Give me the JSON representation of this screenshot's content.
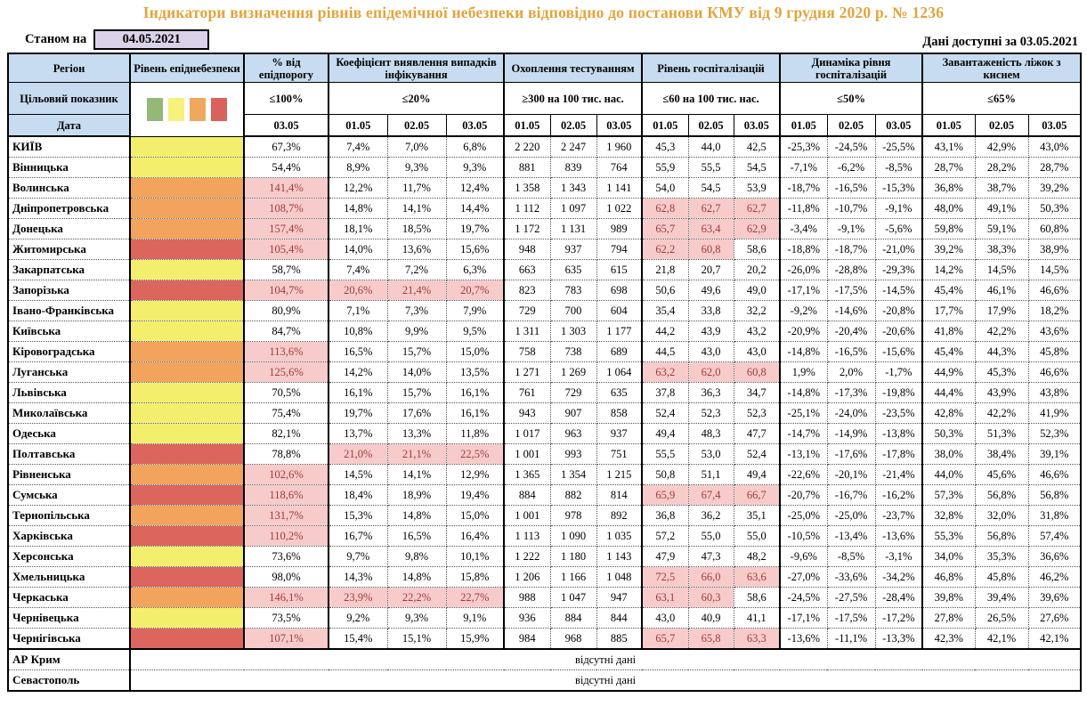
{
  "title": "Індикатори визначення рівнів епідемічної небезпеки відповідно до постанови КМУ від 9 грудня 2020 р. № 1236",
  "meta": {
    "as_of_label": "Станом на",
    "as_of_date": "04.05.2021",
    "available_label": "Дані доступні за",
    "available_date": "03.05.2021"
  },
  "header": {
    "region": "Регіон",
    "level": "Рівень епіднебезпеки",
    "target_label": "Цільовий показник",
    "date_label": "Дата",
    "groups": [
      {
        "label": "% від епідпорогу",
        "target": "≤100%",
        "dates": [
          "03.05"
        ]
      },
      {
        "label": "Коефіцієнт виявлення випадків інфікування",
        "target": "≤20%",
        "dates": [
          "01.05",
          "02.05",
          "03.05"
        ]
      },
      {
        "label": "Охоплення тестуванням",
        "target": "≥300 на 100 тис. нас.",
        "dates": [
          "01.05",
          "02.05",
          "03.05"
        ]
      },
      {
        "label": "Рівень госпіталізацій",
        "target": "≤60 на 100 тис. нас.",
        "dates": [
          "01.05",
          "02.05",
          "03.05"
        ]
      },
      {
        "label": "Динаміка рівня госпіталізацій",
        "target": "≤50%",
        "dates": [
          "01.05",
          "02.05",
          "03.05"
        ]
      },
      {
        "label": "Завантаженість ліжок з киснем",
        "target": "≤65%",
        "dates": [
          "01.05",
          "02.05",
          "03.05"
        ]
      }
    ]
  },
  "colors": {
    "title_gold": "#E2A43C",
    "header_blue": "#C7DCF0",
    "date_lavender": "#D9D2E9",
    "level_yellow": "#F3EF6D",
    "level_orange": "#F3A45C",
    "level_red": "#DC655E",
    "highlight_bg": "#F8CBCB",
    "highlight_text": "#9E3A3A",
    "legend": {
      "green": "#93B877",
      "yellow": "#F6F27B",
      "orange": "#F0A85E",
      "red": "#D9625C"
    }
  },
  "no_data_text": "відсутні дані",
  "rows": [
    {
      "region": "КИЇВ",
      "level": "yellow",
      "epid": "67,3%",
      "epid_hl": false,
      "coef": [
        "7,4%",
        "7,0%",
        "6,8%"
      ],
      "coef_hl": false,
      "test": [
        "2 220",
        "2 247",
        "1 960"
      ],
      "hosp": [
        "45,3",
        "44,0",
        "42,5"
      ],
      "hosp_hl": [
        false,
        false,
        false
      ],
      "dyn": [
        "-25,3%",
        "-24,5%",
        "-25,5%"
      ],
      "beds": [
        "43,1%",
        "42,9%",
        "43,0%"
      ]
    },
    {
      "region": "Вінницька",
      "level": "yellow",
      "epid": "54,4%",
      "epid_hl": false,
      "coef": [
        "8,9%",
        "9,3%",
        "9,3%"
      ],
      "coef_hl": false,
      "test": [
        "881",
        "839",
        "764"
      ],
      "hosp": [
        "55,9",
        "55,5",
        "54,5"
      ],
      "hosp_hl": [
        false,
        false,
        false
      ],
      "dyn": [
        "-7,1%",
        "-6,2%",
        "-8,5%"
      ],
      "beds": [
        "28,7%",
        "28,2%",
        "28,7%"
      ]
    },
    {
      "region": "Волинська",
      "level": "orange",
      "epid": "141,4%",
      "epid_hl": true,
      "coef": [
        "12,2%",
        "11,7%",
        "12,4%"
      ],
      "coef_hl": false,
      "test": [
        "1 358",
        "1 343",
        "1 141"
      ],
      "hosp": [
        "54,0",
        "54,5",
        "53,9"
      ],
      "hosp_hl": [
        false,
        false,
        false
      ],
      "dyn": [
        "-18,7%",
        "-16,5%",
        "-15,3%"
      ],
      "beds": [
        "36,8%",
        "38,7%",
        "39,2%"
      ]
    },
    {
      "region": "Дніпропетровська",
      "level": "orange",
      "epid": "108,7%",
      "epid_hl": true,
      "coef": [
        "14,8%",
        "14,1%",
        "14,4%"
      ],
      "coef_hl": false,
      "test": [
        "1 112",
        "1 097",
        "1 022"
      ],
      "hosp": [
        "62,8",
        "62,7",
        "62,7"
      ],
      "hosp_hl": [
        true,
        true,
        true
      ],
      "dyn": [
        "-11,8%",
        "-10,7%",
        "-9,1%"
      ],
      "beds": [
        "48,0%",
        "49,1%",
        "50,3%"
      ]
    },
    {
      "region": "Донецька",
      "level": "orange",
      "epid": "157,4%",
      "epid_hl": true,
      "coef": [
        "18,1%",
        "18,5%",
        "19,7%"
      ],
      "coef_hl": false,
      "test": [
        "1 172",
        "1 131",
        "989"
      ],
      "hosp": [
        "65,7",
        "63,4",
        "62,9"
      ],
      "hosp_hl": [
        true,
        true,
        true
      ],
      "dyn": [
        "-3,4%",
        "-9,1%",
        "-5,6%"
      ],
      "beds": [
        "59,8%",
        "59,1%",
        "60,8%"
      ]
    },
    {
      "region": "Житомирська",
      "level": "red",
      "epid": "105,4%",
      "epid_hl": true,
      "coef": [
        "14,0%",
        "13,6%",
        "15,6%"
      ],
      "coef_hl": false,
      "test": [
        "948",
        "937",
        "794"
      ],
      "hosp": [
        "62,2",
        "60,8",
        "58,6"
      ],
      "hosp_hl": [
        true,
        true,
        false
      ],
      "dyn": [
        "-18,8%",
        "-18,7%",
        "-21,0%"
      ],
      "beds": [
        "39,2%",
        "38,3%",
        "38,9%"
      ]
    },
    {
      "region": "Закарпатська",
      "level": "yellow",
      "epid": "58,7%",
      "epid_hl": false,
      "coef": [
        "7,4%",
        "7,2%",
        "6,3%"
      ],
      "coef_hl": false,
      "test": [
        "663",
        "635",
        "615"
      ],
      "hosp": [
        "21,8",
        "20,7",
        "20,2"
      ],
      "hosp_hl": [
        false,
        false,
        false
      ],
      "dyn": [
        "-26,0%",
        "-28,8%",
        "-29,3%"
      ],
      "beds": [
        "14,2%",
        "14,5%",
        "14,5%"
      ]
    },
    {
      "region": "Запорізька",
      "level": "red",
      "epid": "104,7%",
      "epid_hl": true,
      "coef": [
        "20,6%",
        "21,4%",
        "20,7%"
      ],
      "coef_hl": true,
      "test": [
        "823",
        "783",
        "698"
      ],
      "hosp": [
        "50,6",
        "49,6",
        "49,0"
      ],
      "hosp_hl": [
        false,
        false,
        false
      ],
      "dyn": [
        "-17,1%",
        "-17,5%",
        "-14,5%"
      ],
      "beds": [
        "45,4%",
        "46,1%",
        "46,6%"
      ]
    },
    {
      "region": "Івано-Франківська",
      "level": "yellow",
      "epid": "80,9%",
      "epid_hl": false,
      "coef": [
        "7,1%",
        "7,3%",
        "7,9%"
      ],
      "coef_hl": false,
      "test": [
        "729",
        "700",
        "604"
      ],
      "hosp": [
        "35,4",
        "33,8",
        "32,2"
      ],
      "hosp_hl": [
        false,
        false,
        false
      ],
      "dyn": [
        "-9,2%",
        "-14,6%",
        "-20,8%"
      ],
      "beds": [
        "17,7%",
        "17,9%",
        "18,2%"
      ]
    },
    {
      "region": "Київська",
      "level": "yellow",
      "epid": "84,7%",
      "epid_hl": false,
      "coef": [
        "10,8%",
        "9,9%",
        "9,5%"
      ],
      "coef_hl": false,
      "test": [
        "1 311",
        "1 303",
        "1 177"
      ],
      "hosp": [
        "44,2",
        "43,9",
        "43,2"
      ],
      "hosp_hl": [
        false,
        false,
        false
      ],
      "dyn": [
        "-20,9%",
        "-20,4%",
        "-20,6%"
      ],
      "beds": [
        "41,8%",
        "42,2%",
        "43,6%"
      ]
    },
    {
      "region": "Кіровоградська",
      "level": "orange",
      "epid": "113,6%",
      "epid_hl": true,
      "coef": [
        "16,5%",
        "15,7%",
        "15,0%"
      ],
      "coef_hl": false,
      "test": [
        "758",
        "738",
        "689"
      ],
      "hosp": [
        "44,5",
        "43,0",
        "43,0"
      ],
      "hosp_hl": [
        false,
        false,
        false
      ],
      "dyn": [
        "-14,8%",
        "-16,5%",
        "-15,6%"
      ],
      "beds": [
        "45,4%",
        "44,3%",
        "45,8%"
      ]
    },
    {
      "region": "Луганська",
      "level": "orange",
      "epid": "125,6%",
      "epid_hl": true,
      "coef": [
        "14,2%",
        "14,0%",
        "13,5%"
      ],
      "coef_hl": false,
      "test": [
        "1 271",
        "1 269",
        "1 064"
      ],
      "hosp": [
        "63,2",
        "62,0",
        "60,8"
      ],
      "hosp_hl": [
        true,
        true,
        true
      ],
      "dyn": [
        "1,9%",
        "2,0%",
        "-1,7%"
      ],
      "beds": [
        "44,9%",
        "45,3%",
        "46,6%"
      ]
    },
    {
      "region": "Львівська",
      "level": "yellow",
      "epid": "70,5%",
      "epid_hl": false,
      "coef": [
        "16,1%",
        "15,7%",
        "16,1%"
      ],
      "coef_hl": false,
      "test": [
        "761",
        "729",
        "635"
      ],
      "hosp": [
        "37,8",
        "36,3",
        "34,7"
      ],
      "hosp_hl": [
        false,
        false,
        false
      ],
      "dyn": [
        "-14,8%",
        "-17,3%",
        "-19,8%"
      ],
      "beds": [
        "44,4%",
        "43,9%",
        "43,8%"
      ]
    },
    {
      "region": "Миколаївська",
      "level": "yellow",
      "epid": "75,4%",
      "epid_hl": false,
      "coef": [
        "19,7%",
        "17,6%",
        "16,1%"
      ],
      "coef_hl": false,
      "test": [
        "943",
        "907",
        "858"
      ],
      "hosp": [
        "52,4",
        "52,3",
        "52,3"
      ],
      "hosp_hl": [
        false,
        false,
        false
      ],
      "dyn": [
        "-25,1%",
        "-24,0%",
        "-23,5%"
      ],
      "beds": [
        "42,8%",
        "42,2%",
        "41,9%"
      ]
    },
    {
      "region": "Одеська",
      "level": "yellow",
      "epid": "82,1%",
      "epid_hl": false,
      "coef": [
        "13,7%",
        "13,3%",
        "11,8%"
      ],
      "coef_hl": false,
      "test": [
        "1 017",
        "963",
        "937"
      ],
      "hosp": [
        "49,4",
        "48,3",
        "47,7"
      ],
      "hosp_hl": [
        false,
        false,
        false
      ],
      "dyn": [
        "-14,7%",
        "-14,9%",
        "-13,8%"
      ],
      "beds": [
        "50,3%",
        "51,3%",
        "52,3%"
      ]
    },
    {
      "region": "Полтавська",
      "level": "red",
      "epid": "78,8%",
      "epid_hl": false,
      "coef": [
        "21,0%",
        "21,1%",
        "22,5%"
      ],
      "coef_hl": true,
      "test": [
        "1 001",
        "993",
        "751"
      ],
      "hosp": [
        "55,5",
        "53,0",
        "52,4"
      ],
      "hosp_hl": [
        false,
        false,
        false
      ],
      "dyn": [
        "-13,1%",
        "-17,6%",
        "-17,8%"
      ],
      "beds": [
        "38,0%",
        "38,4%",
        "39,1%"
      ]
    },
    {
      "region": "Рівненська",
      "level": "orange",
      "epid": "102,6%",
      "epid_hl": true,
      "coef": [
        "14,5%",
        "14,1%",
        "12,9%"
      ],
      "coef_hl": false,
      "test": [
        "1 365",
        "1 354",
        "1 215"
      ],
      "hosp": [
        "50,8",
        "51,1",
        "49,4"
      ],
      "hosp_hl": [
        false,
        false,
        false
      ],
      "dyn": [
        "-22,6%",
        "-20,1%",
        "-21,4%"
      ],
      "beds": [
        "44,0%",
        "45,6%",
        "46,6%"
      ]
    },
    {
      "region": "Сумська",
      "level": "red",
      "epid": "118,6%",
      "epid_hl": true,
      "coef": [
        "18,4%",
        "18,9%",
        "19,4%"
      ],
      "coef_hl": false,
      "test": [
        "884",
        "882",
        "814"
      ],
      "hosp": [
        "65,9",
        "67,4",
        "66,7"
      ],
      "hosp_hl": [
        true,
        true,
        true
      ],
      "dyn": [
        "-20,7%",
        "-16,7%",
        "-16,2%"
      ],
      "beds": [
        "57,3%",
        "56,8%",
        "56,8%"
      ]
    },
    {
      "region": "Тернопільська",
      "level": "orange",
      "epid": "131,7%",
      "epid_hl": true,
      "coef": [
        "15,3%",
        "14,8%",
        "15,0%"
      ],
      "coef_hl": false,
      "test": [
        "1 001",
        "978",
        "892"
      ],
      "hosp": [
        "36,8",
        "36,2",
        "35,1"
      ],
      "hosp_hl": [
        false,
        false,
        false
      ],
      "dyn": [
        "-25,0%",
        "-25,0%",
        "-23,7%"
      ],
      "beds": [
        "32,8%",
        "32,0%",
        "31,8%"
      ]
    },
    {
      "region": "Харківська",
      "level": "red",
      "epid": "110,2%",
      "epid_hl": true,
      "coef": [
        "16,7%",
        "16,5%",
        "16,4%"
      ],
      "coef_hl": false,
      "test": [
        "1 113",
        "1 090",
        "1 035"
      ],
      "hosp": [
        "57,2",
        "55,0",
        "55,0"
      ],
      "hosp_hl": [
        false,
        false,
        false
      ],
      "dyn": [
        "-10,5%",
        "-13,4%",
        "-13,6%"
      ],
      "beds": [
        "55,3%",
        "56,8%",
        "57,4%"
      ]
    },
    {
      "region": "Херсонська",
      "level": "yellow",
      "epid": "73,6%",
      "epid_hl": false,
      "coef": [
        "9,7%",
        "9,8%",
        "10,1%"
      ],
      "coef_hl": false,
      "test": [
        "1 222",
        "1 180",
        "1 143"
      ],
      "hosp": [
        "47,9",
        "47,3",
        "48,2"
      ],
      "hosp_hl": [
        false,
        false,
        false
      ],
      "dyn": [
        "-9,6%",
        "-8,5%",
        "-3,1%"
      ],
      "beds": [
        "34,0%",
        "35,3%",
        "36,6%"
      ]
    },
    {
      "region": "Хмельницька",
      "level": "red",
      "epid": "98,0%",
      "epid_hl": false,
      "coef": [
        "14,3%",
        "14,8%",
        "15,8%"
      ],
      "coef_hl": false,
      "test": [
        "1 206",
        "1 166",
        "1 048"
      ],
      "hosp": [
        "72,5",
        "66,0",
        "63,6"
      ],
      "hosp_hl": [
        true,
        true,
        true
      ],
      "dyn": [
        "-27,0%",
        "-33,6%",
        "-34,2%"
      ],
      "beds": [
        "46,8%",
        "45,8%",
        "46,2%"
      ]
    },
    {
      "region": "Черкаська",
      "level": "orange",
      "epid": "146,1%",
      "epid_hl": true,
      "coef": [
        "23,9%",
        "22,2%",
        "22,7%"
      ],
      "coef_hl": true,
      "test": [
        "988",
        "1 047",
        "947"
      ],
      "hosp": [
        "63,1",
        "60,3",
        "58,6"
      ],
      "hosp_hl": [
        true,
        true,
        false
      ],
      "dyn": [
        "-24,5%",
        "-27,5%",
        "-28,4%"
      ],
      "beds": [
        "39,8%",
        "39,4%",
        "39,6%"
      ]
    },
    {
      "region": "Чернівецька",
      "level": "yellow",
      "epid": "73,5%",
      "epid_hl": false,
      "coef": [
        "9,2%",
        "9,3%",
        "9,1%"
      ],
      "coef_hl": false,
      "test": [
        "936",
        "884",
        "844"
      ],
      "hosp": [
        "43,0",
        "40,9",
        "41,1"
      ],
      "hosp_hl": [
        false,
        false,
        false
      ],
      "dyn": [
        "-17,1%",
        "-17,5%",
        "-17,2%"
      ],
      "beds": [
        "27,8%",
        "26,5%",
        "27,6%"
      ]
    },
    {
      "region": "Чернігівська",
      "level": "red",
      "epid": "107,1%",
      "epid_hl": true,
      "coef": [
        "15,4%",
        "15,1%",
        "15,9%"
      ],
      "coef_hl": false,
      "test": [
        "984",
        "968",
        "885"
      ],
      "hosp": [
        "65,7",
        "65,8",
        "63,3"
      ],
      "hosp_hl": [
        true,
        true,
        true
      ],
      "dyn": [
        "-13,6%",
        "-11,1%",
        "-13,3%"
      ],
      "beds": [
        "42,3%",
        "42,1%",
        "42,1%"
      ]
    },
    {
      "region": "АР Крим",
      "level": null,
      "no_data": "відсутні дані"
    },
    {
      "region": "Севастополь",
      "level": null,
      "no_data": "відсутні дані"
    }
  ]
}
